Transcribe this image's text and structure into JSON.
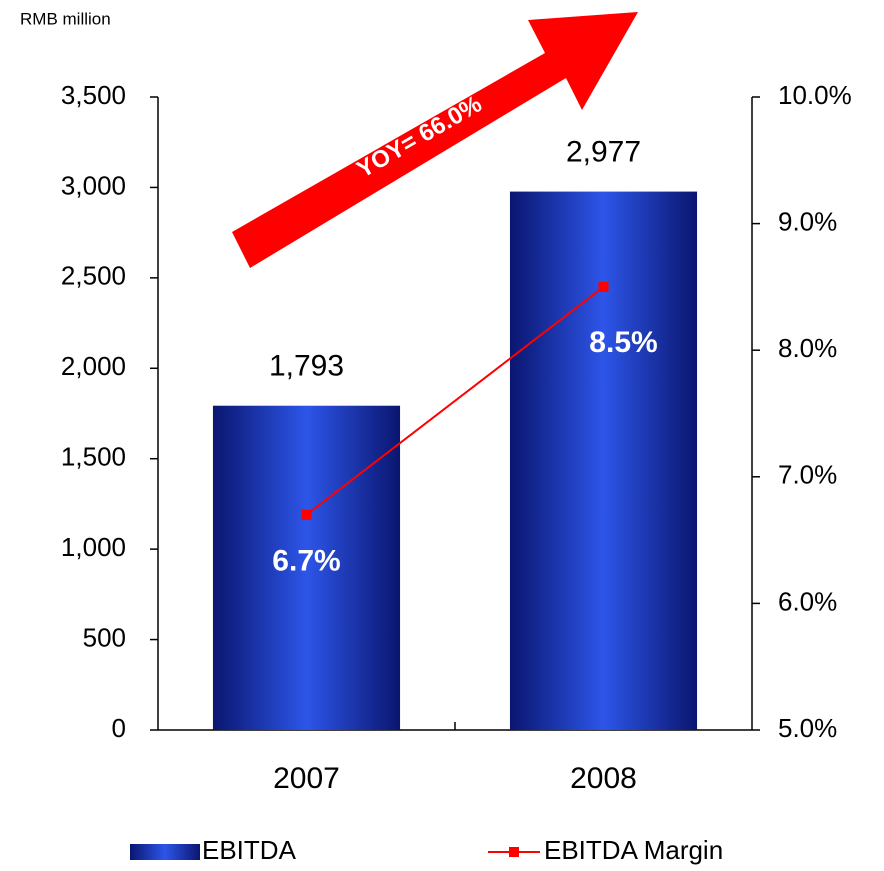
{
  "chart_data": {
    "type": "bar",
    "unit_label": "RMB million",
    "annotation": "YOY= 66.0%",
    "categories": [
      "2007",
      "2008"
    ],
    "series": [
      {
        "name": "EBITDA",
        "type": "bar",
        "color": "#2d55e8",
        "values": [
          1793,
          2977
        ],
        "value_labels": [
          "1,793",
          "2,977"
        ]
      },
      {
        "name": "EBITDA Margin",
        "type": "line",
        "axis": "y2",
        "color": "#ff0000",
        "values": [
          6.7,
          8.5
        ],
        "value_labels": [
          "6.7%",
          "8.5%"
        ]
      }
    ],
    "ylim": [
      0,
      3500
    ],
    "yticks": [
      0,
      500,
      {
        "value": 1000,
        "label": "1,000"
      },
      {
        "value": 1500,
        "label": "1,500"
      },
      {
        "value": 2000,
        "label": "2,000"
      },
      {
        "value": 2500,
        "label": "2,500"
      },
      {
        "value": 3000,
        "label": "3,000"
      },
      {
        "value": 3500,
        "label": "3,500"
      }
    ],
    "y2lim": [
      5,
      10
    ],
    "y2ticks": [
      {
        "value": 5,
        "label": "5.0%"
      },
      {
        "value": 6,
        "label": "6.0%"
      },
      {
        "value": 7,
        "label": "7.0%"
      },
      {
        "value": 8,
        "label": "8.0%"
      },
      {
        "value": 9,
        "label": "9.0%"
      },
      {
        "value": 10,
        "label": "10.0%"
      }
    ],
    "grid": false
  }
}
